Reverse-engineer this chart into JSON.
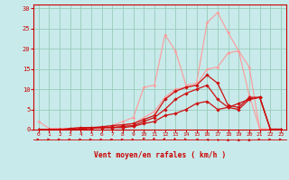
{
  "xlabel": "Vent moyen/en rafales ( km/h )",
  "background_color": "#c8eaea",
  "grid_color": "#99ccbb",
  "x_values": [
    0,
    1,
    2,
    3,
    4,
    5,
    6,
    7,
    8,
    9,
    10,
    11,
    12,
    13,
    14,
    15,
    16,
    17,
    18,
    19,
    20,
    21,
    22,
    23
  ],
  "series": [
    {
      "color": "#ff9999",
      "linewidth": 0.8,
      "marker": "D",
      "markersize": 1.8,
      "values": [
        2.0,
        0.3,
        0.3,
        0.3,
        0.5,
        0.5,
        0.5,
        1.0,
        2.0,
        3.0,
        10.5,
        11.0,
        23.5,
        19.5,
        11.0,
        11.5,
        26.5,
        29.0,
        24.0,
        19.5,
        8.5,
        0.2,
        0.1,
        0.1
      ]
    },
    {
      "color": "#ff9999",
      "linewidth": 0.8,
      "marker": "D",
      "markersize": 1.8,
      "values": [
        0.0,
        0.0,
        0.0,
        0.0,
        0.0,
        0.3,
        0.3,
        0.5,
        1.0,
        1.5,
        3.0,
        4.5,
        8.0,
        10.0,
        10.5,
        11.0,
        15.0,
        15.5,
        19.0,
        19.5,
        15.5,
        0.1,
        0.1,
        0.1
      ]
    },
    {
      "color": "#cc1111",
      "linewidth": 0.9,
      "marker": "D",
      "markersize": 2.2,
      "values": [
        0.0,
        0.0,
        0.0,
        0.3,
        0.5,
        0.5,
        0.7,
        1.0,
        1.2,
        1.5,
        2.5,
        3.5,
        7.5,
        9.5,
        10.5,
        11.0,
        13.5,
        11.5,
        6.0,
        5.5,
        8.0,
        8.0,
        0.1,
        0.1
      ]
    },
    {
      "color": "#cc1111",
      "linewidth": 0.9,
      "marker": "D",
      "markersize": 2.2,
      "values": [
        0.0,
        0.0,
        0.0,
        0.0,
        0.3,
        0.5,
        0.5,
        0.5,
        0.8,
        1.0,
        2.0,
        3.0,
        5.0,
        7.5,
        9.0,
        10.0,
        11.0,
        7.5,
        5.5,
        5.0,
        7.5,
        8.0,
        0.1,
        0.1
      ]
    },
    {
      "color": "#cc1111",
      "linewidth": 0.9,
      "marker": "D",
      "markersize": 2.2,
      "values": [
        0.0,
        0.0,
        0.0,
        0.0,
        0.0,
        0.3,
        0.5,
        0.5,
        0.5,
        0.8,
        1.5,
        2.0,
        3.5,
        4.0,
        5.0,
        6.5,
        7.0,
        5.0,
        5.5,
        6.5,
        7.5,
        8.0,
        0.1,
        0.1
      ]
    }
  ],
  "ylim": [
    0,
    31
  ],
  "xlim": [
    -0.5,
    23.5
  ],
  "yticks": [
    0,
    5,
    10,
    15,
    20,
    25,
    30
  ],
  "xticks": [
    0,
    1,
    2,
    3,
    4,
    5,
    6,
    7,
    8,
    9,
    10,
    11,
    12,
    13,
    14,
    15,
    16,
    17,
    18,
    19,
    20,
    21,
    22,
    23
  ],
  "tick_color": "#cc0000",
  "spine_color": "#cc0000",
  "wind_arrow_angles": [
    0,
    0,
    0,
    0,
    0,
    0,
    0,
    0,
    0,
    0,
    270,
    300,
    315,
    330,
    345,
    180,
    160,
    140,
    90,
    90,
    90,
    0,
    0,
    0
  ]
}
